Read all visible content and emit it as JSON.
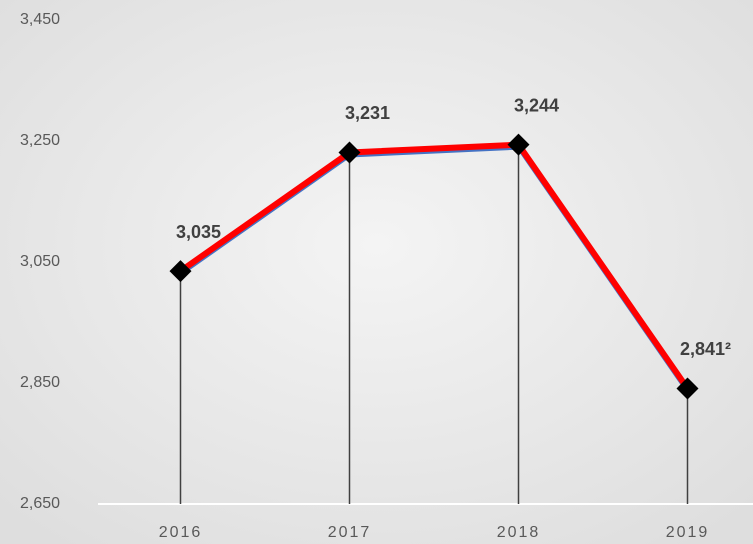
{
  "chart_data": {
    "type": "line",
    "categories": [
      "2016",
      "2017",
      "2018",
      "2019"
    ],
    "series": [
      {
        "color": "#ff0000",
        "values": [
          3035,
          3231,
          3244,
          2841
        ],
        "value_labels": [
          "3,035",
          "3,231",
          "3,244",
          "2,841²"
        ]
      }
    ],
    "ylim": [
      2650,
      3450
    ],
    "yticks": [
      {
        "value": 2650,
        "label": "2,650"
      },
      {
        "value": 2850,
        "label": "2,850"
      },
      {
        "value": 3050,
        "label": "3,050"
      },
      {
        "value": 3250,
        "label": "3,250"
      },
      {
        "value": 3450,
        "label": "3,450"
      }
    ],
    "grid": false
  }
}
